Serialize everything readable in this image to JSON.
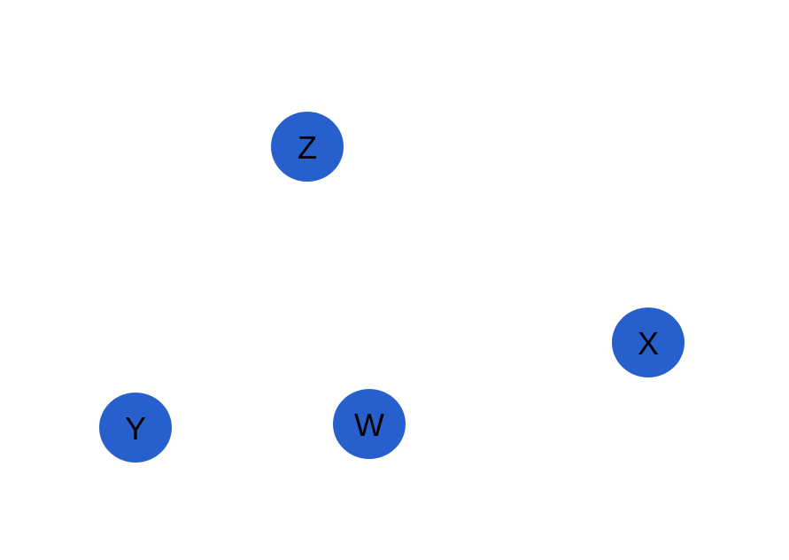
{
  "diagram": {
    "node_color": "#2760cc",
    "label_color": "#000000",
    "nodes": [
      {
        "id": "Z",
        "label": "Z"
      },
      {
        "id": "X",
        "label": "X"
      },
      {
        "id": "Y",
        "label": "Y"
      },
      {
        "id": "W",
        "label": "W"
      }
    ]
  }
}
